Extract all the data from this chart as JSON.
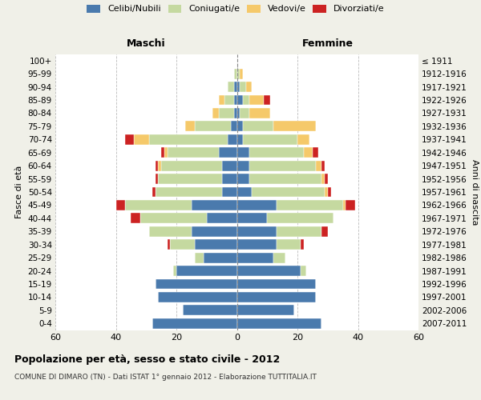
{
  "age_groups": [
    "0-4",
    "5-9",
    "10-14",
    "15-19",
    "20-24",
    "25-29",
    "30-34",
    "35-39",
    "40-44",
    "45-49",
    "50-54",
    "55-59",
    "60-64",
    "65-69",
    "70-74",
    "75-79",
    "80-84",
    "85-89",
    "90-94",
    "95-99",
    "100+"
  ],
  "birth_years": [
    "2007-2011",
    "2002-2006",
    "1997-2001",
    "1992-1996",
    "1987-1991",
    "1982-1986",
    "1977-1981",
    "1972-1976",
    "1967-1971",
    "1962-1966",
    "1957-1961",
    "1952-1956",
    "1947-1951",
    "1942-1946",
    "1937-1941",
    "1932-1936",
    "1927-1931",
    "1922-1926",
    "1917-1921",
    "1912-1916",
    "≤ 1911"
  ],
  "male_celibi": [
    28,
    18,
    26,
    27,
    20,
    11,
    14,
    15,
    10,
    15,
    5,
    5,
    5,
    6,
    3,
    2,
    1,
    1,
    1,
    0,
    0
  ],
  "male_coniugati": [
    0,
    0,
    0,
    0,
    1,
    3,
    8,
    14,
    22,
    22,
    22,
    21,
    20,
    17,
    26,
    12,
    5,
    3,
    2,
    1,
    0
  ],
  "male_vedovi": [
    0,
    0,
    0,
    0,
    0,
    0,
    0,
    0,
    0,
    0,
    0,
    0,
    1,
    1,
    5,
    3,
    2,
    2,
    0,
    0,
    0
  ],
  "male_divorziati": [
    0,
    0,
    0,
    0,
    0,
    0,
    1,
    0,
    3,
    3,
    1,
    1,
    1,
    1,
    3,
    0,
    0,
    0,
    0,
    0,
    0
  ],
  "female_celibi": [
    28,
    19,
    26,
    26,
    21,
    12,
    13,
    13,
    10,
    13,
    5,
    4,
    4,
    4,
    2,
    2,
    1,
    2,
    1,
    0,
    0
  ],
  "female_coniugati": [
    0,
    0,
    0,
    0,
    2,
    4,
    8,
    15,
    22,
    22,
    24,
    24,
    22,
    18,
    18,
    10,
    3,
    2,
    2,
    1,
    0
  ],
  "female_vedovi": [
    0,
    0,
    0,
    0,
    0,
    0,
    0,
    0,
    0,
    1,
    1,
    1,
    2,
    3,
    4,
    14,
    7,
    5,
    2,
    1,
    0
  ],
  "female_divorziati": [
    0,
    0,
    0,
    0,
    0,
    0,
    1,
    2,
    0,
    3,
    1,
    1,
    1,
    2,
    0,
    0,
    0,
    2,
    0,
    0,
    0
  ],
  "color_celibi": "#4a7aad",
  "color_coniugati": "#c5d9a0",
  "color_vedovi": "#f5c96a",
  "color_divorziati": "#cc2222",
  "title": "Popolazione per età, sesso e stato civile - 2012",
  "subtitle": "COMUNE DI DIMARO (TN) - Dati ISTAT 1° gennaio 2012 - Elaborazione TUTTITALIA.IT",
  "xlabel_left": "Maschi",
  "xlabel_right": "Femmine",
  "ylabel_left": "Fasce di età",
  "ylabel_right": "Anni di nascita",
  "xlim": 60,
  "bg_color": "#f0f0e8",
  "plot_bg": "#ffffff"
}
